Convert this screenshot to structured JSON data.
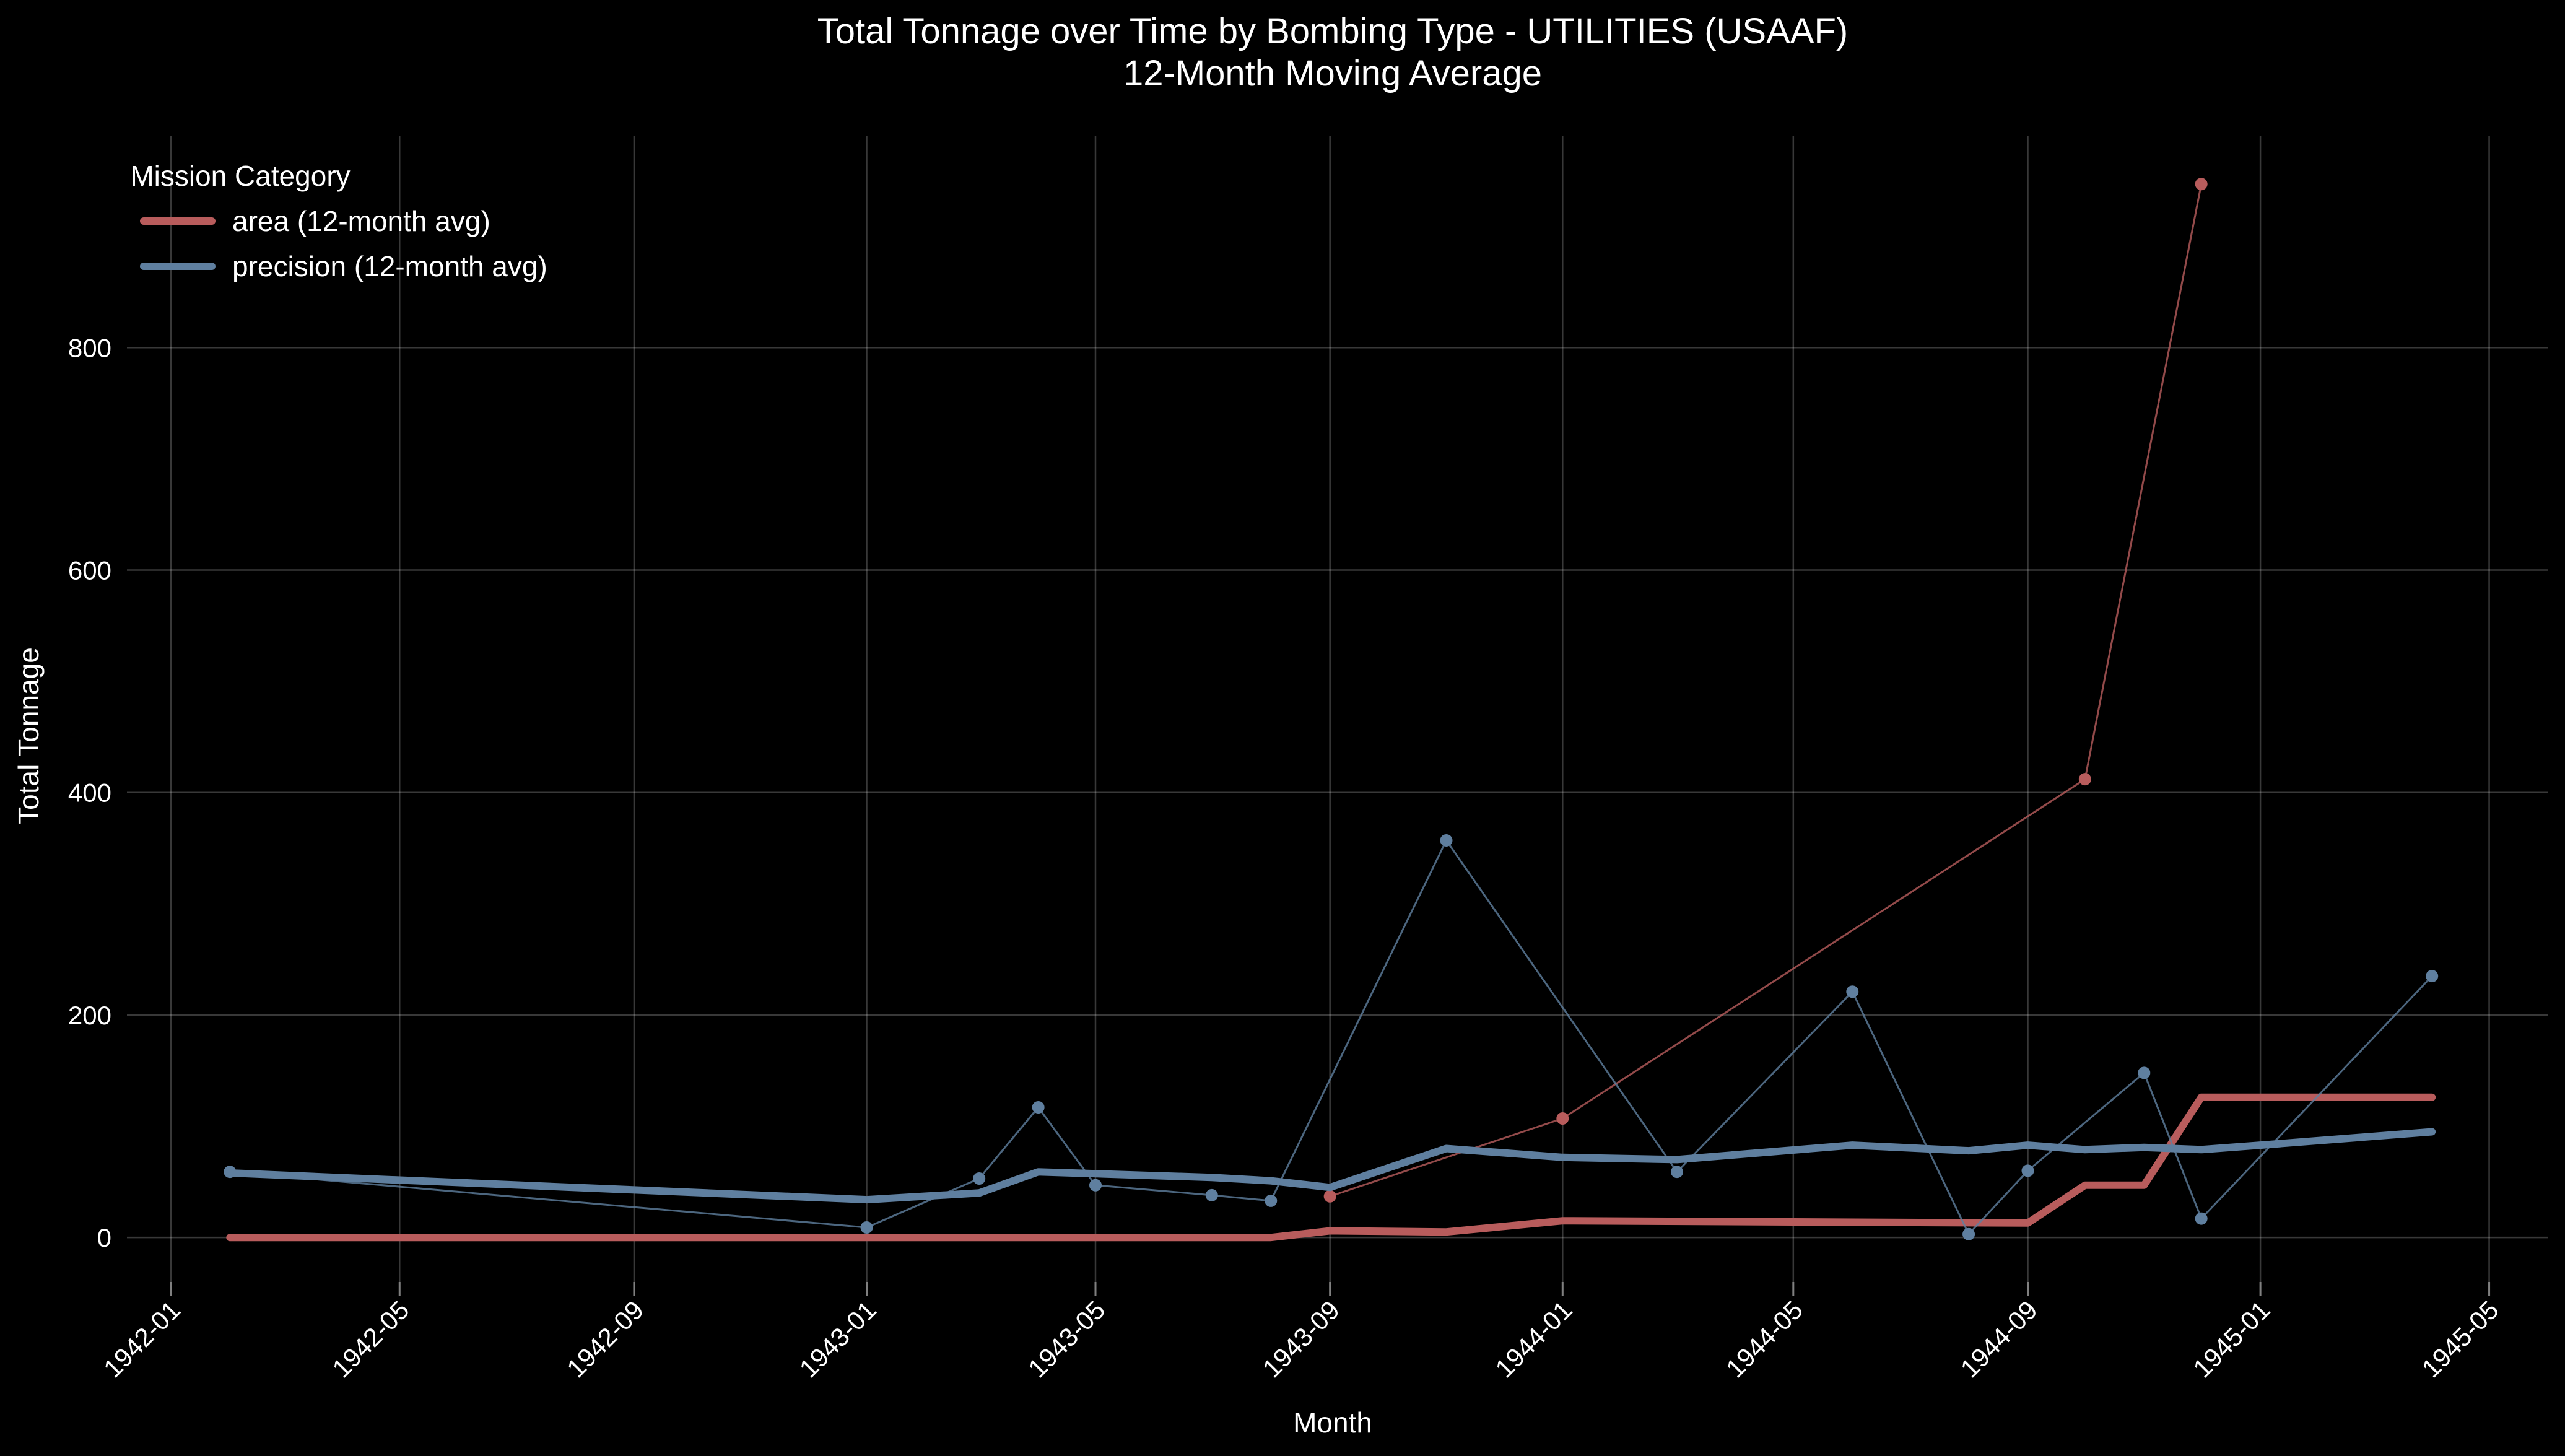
{
  "chart_data": {
    "type": "line",
    "title": "Total Tonnage over Time by Bombing Type - UTILITIES (USAAF)",
    "subtitle": "12-Month Moving Average",
    "xlabel": "Month",
    "ylabel": "Total Tonnage",
    "x_ticks": [
      "1942-01",
      "1942-05",
      "1942-09",
      "1943-01",
      "1943-05",
      "1943-09",
      "1944-01",
      "1944-05",
      "1944-09",
      "1945-01",
      "1945-05"
    ],
    "y_ticks": [
      0,
      200,
      400,
      600,
      800
    ],
    "xlim": [
      "1941-12-09",
      "1945-06-01"
    ],
    "ylim": [
      -40,
      990
    ],
    "grid": true,
    "legend": {
      "title": "Mission Category",
      "placement": "top-left",
      "entries": [
        "area (12-month avg)",
        "precision (12-month avg)"
      ]
    },
    "series": [
      {
        "key": "area",
        "color": "#b85c5c",
        "raw": [
          {
            "x": "1943-09-01",
            "y": 37
          },
          {
            "x": "1944-01-01",
            "y": 107
          },
          {
            "x": "1944-10-01",
            "y": 412
          },
          {
            "x": "1944-12-01",
            "y": 947
          }
        ],
        "avg": [
          {
            "x": "1942-02-01",
            "y": 0
          },
          {
            "x": "1943-08-01",
            "y": 0
          },
          {
            "x": "1943-09-01",
            "y": 6
          },
          {
            "x": "1943-11-01",
            "y": 5
          },
          {
            "x": "1944-01-01",
            "y": 15
          },
          {
            "x": "1944-09-01",
            "y": 13
          },
          {
            "x": "1944-10-01",
            "y": 47
          },
          {
            "x": "1944-11-01",
            "y": 47
          },
          {
            "x": "1944-12-01",
            "y": 126
          },
          {
            "x": "1945-04-01",
            "y": 126
          }
        ]
      },
      {
        "key": "precision",
        "color": "#5f7f9f",
        "raw": [
          {
            "x": "1942-02-01",
            "y": 59
          },
          {
            "x": "1943-01-01",
            "y": 9
          },
          {
            "x": "1943-03-01",
            "y": 53
          },
          {
            "x": "1943-04-01",
            "y": 117
          },
          {
            "x": "1943-05-01",
            "y": 47
          },
          {
            "x": "1943-07-01",
            "y": 38
          },
          {
            "x": "1943-08-01",
            "y": 33
          },
          {
            "x": "1943-11-01",
            "y": 357
          },
          {
            "x": "1944-03-01",
            "y": 59
          },
          {
            "x": "1944-06-01",
            "y": 221
          },
          {
            "x": "1944-08-01",
            "y": 3
          },
          {
            "x": "1944-09-01",
            "y": 60
          },
          {
            "x": "1944-11-01",
            "y": 148
          },
          {
            "x": "1944-12-01",
            "y": 17
          },
          {
            "x": "1945-04-01",
            "y": 235
          }
        ],
        "avg": [
          {
            "x": "1942-02-01",
            "y": 58
          },
          {
            "x": "1943-01-01",
            "y": 34
          },
          {
            "x": "1943-03-01",
            "y": 40
          },
          {
            "x": "1943-04-01",
            "y": 59
          },
          {
            "x": "1943-07-01",
            "y": 54
          },
          {
            "x": "1943-08-01",
            "y": 51
          },
          {
            "x": "1943-09-01",
            "y": 45
          },
          {
            "x": "1943-11-01",
            "y": 80
          },
          {
            "x": "1944-01-01",
            "y": 72
          },
          {
            "x": "1944-03-01",
            "y": 70
          },
          {
            "x": "1944-06-01",
            "y": 83
          },
          {
            "x": "1944-08-01",
            "y": 78
          },
          {
            "x": "1944-09-01",
            "y": 83
          },
          {
            "x": "1944-10-01",
            "y": 79
          },
          {
            "x": "1944-11-01",
            "y": 81
          },
          {
            "x": "1944-12-01",
            "y": 79
          },
          {
            "x": "1945-01-01",
            "y": 83
          },
          {
            "x": "1945-04-01",
            "y": 95
          }
        ]
      }
    ]
  }
}
